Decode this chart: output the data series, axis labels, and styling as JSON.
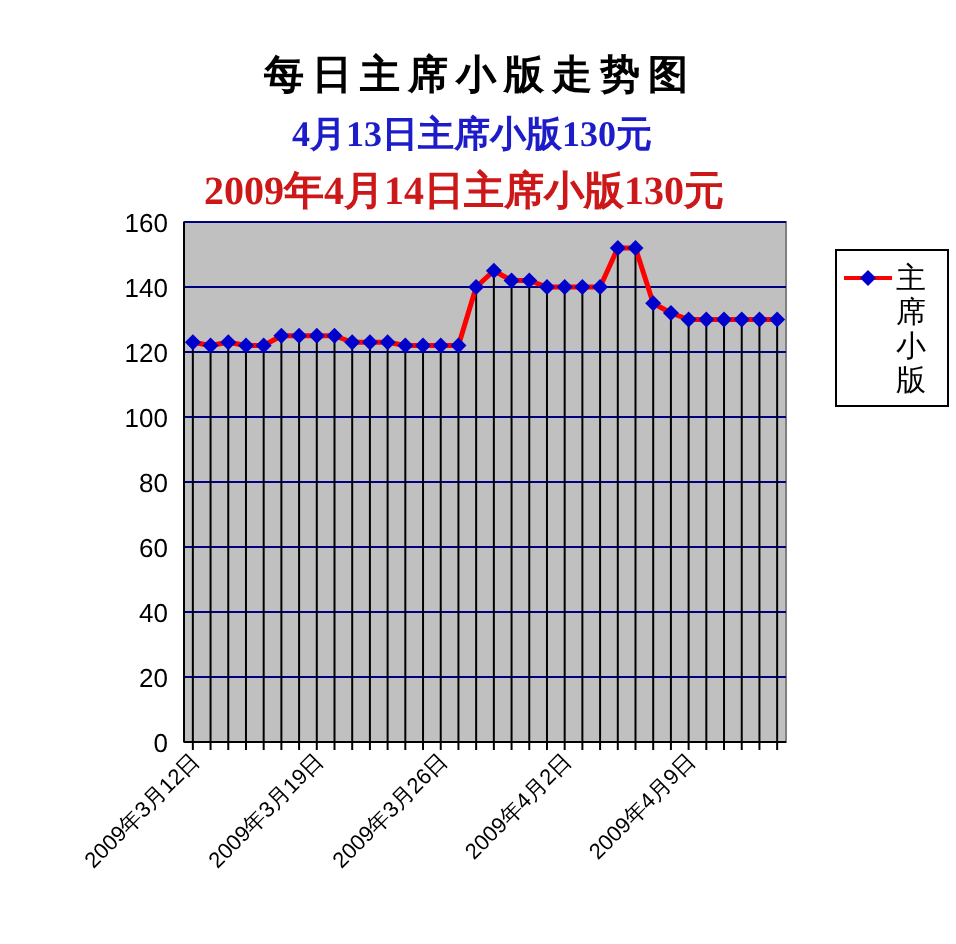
{
  "chart_data": {
    "type": "line",
    "title": "每日主席小版走势图",
    "subtitle": "4月13日主席小版130元",
    "annotations": [
      "2009年4月14日主席小版130元"
    ],
    "categories": [
      "2009年3月12日",
      null,
      null,
      null,
      null,
      null,
      null,
      "2009年3月19日",
      null,
      null,
      null,
      null,
      null,
      null,
      "2009年3月26日",
      null,
      null,
      null,
      null,
      null,
      null,
      "2009年4月2日",
      null,
      null,
      null,
      null,
      null,
      null,
      "2009年4月9日",
      null,
      null,
      null,
      null,
      null
    ],
    "series": [
      {
        "name": "主席小版",
        "color": "#ff0000",
        "colors": [
          "#0000cc",
          "#0000cc",
          "#0000cc",
          "#0000cc",
          "#0000cc",
          "#0000cc",
          "#0000cc",
          "#0000cc",
          "#0000cc",
          "#0000cc",
          "#0000cc",
          "#0000cc",
          "#0000cc",
          "#0000cc",
          "#0000cc",
          "#0000cc",
          "#0000cc",
          "#0000cc",
          "#0000cc",
          "#0000cc",
          "#0000cc",
          "#0000cc",
          "#0000cc",
          "#0000cc",
          "#0000cc",
          "#0000cc",
          "#0000cc",
          "#0000cc",
          "#0000cc",
          "#0000cc",
          "#0000cc",
          "#0000cc",
          "#0000cc",
          "#0000cc"
        ],
        "values": [
          123,
          122,
          123,
          122,
          122,
          125,
          125,
          125,
          125,
          123,
          123,
          123,
          122,
          122,
          122,
          122,
          140,
          145,
          142,
          142,
          140,
          140,
          140,
          140,
          152,
          152,
          135,
          132,
          130,
          130,
          130,
          130,
          130,
          130
        ]
      }
    ],
    "ylim": [
      0,
      160
    ],
    "yticks": [
      0,
      20,
      40,
      60,
      80,
      100,
      120,
      140,
      160
    ],
    "grid": true,
    "legend": "right",
    "marker": "diamond",
    "line_style": "solid"
  }
}
